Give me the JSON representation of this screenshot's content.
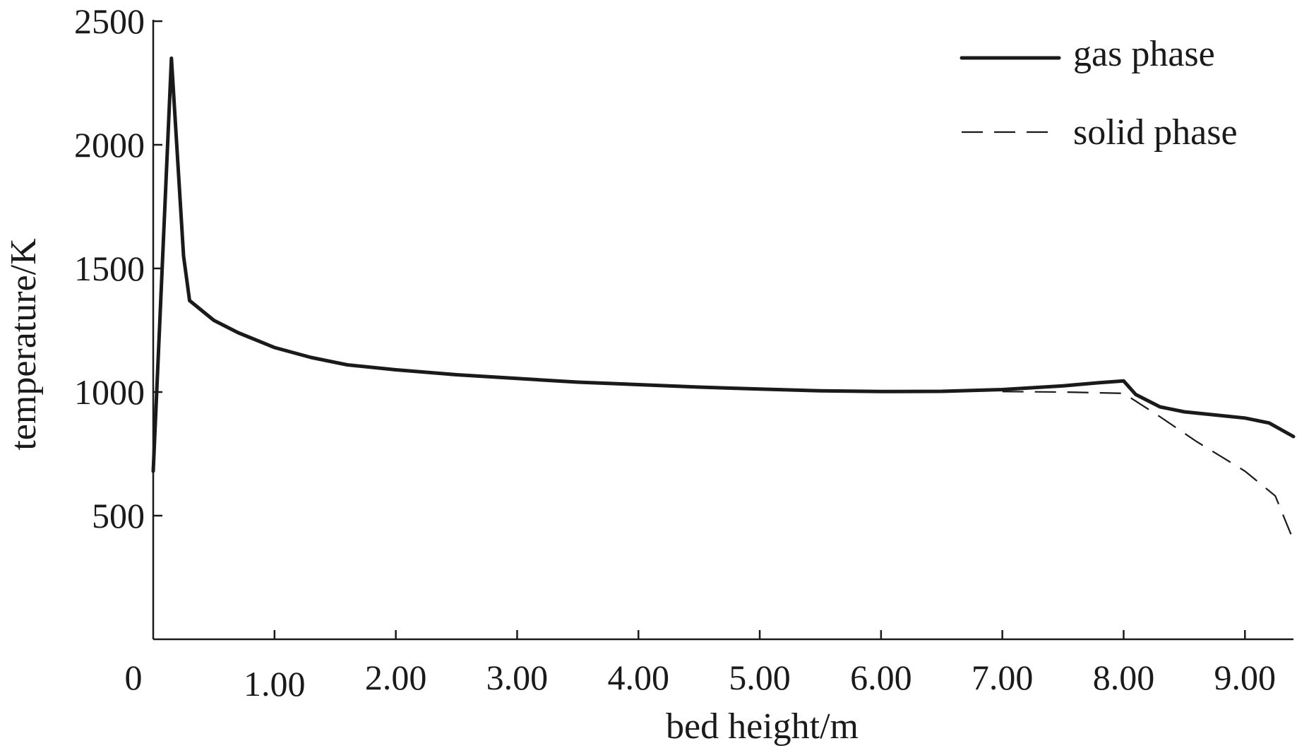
{
  "chart_data": {
    "type": "line",
    "title": "",
    "xlabel": "bed height/m",
    "ylabel": "temperature/K",
    "xlim": [
      0,
      9.4
    ],
    "ylim": [
      0,
      2500
    ],
    "x_ticks": [
      {
        "value": 0,
        "label": "0"
      },
      {
        "value": 1,
        "label": "1.00"
      },
      {
        "value": 2,
        "label": "2.00"
      },
      {
        "value": 3,
        "label": "3.00"
      },
      {
        "value": 4,
        "label": "4.00"
      },
      {
        "value": 5,
        "label": "5.00"
      },
      {
        "value": 6,
        "label": "6.00"
      },
      {
        "value": 7,
        "label": "7.00"
      },
      {
        "value": 8,
        "label": "8.00"
      },
      {
        "value": 9,
        "label": "9.00"
      }
    ],
    "y_ticks": [
      {
        "value": 500,
        "label": "500"
      },
      {
        "value": 1000,
        "label": "1000"
      },
      {
        "value": 1500,
        "label": "1500"
      },
      {
        "value": 2000,
        "label": "2000"
      },
      {
        "value": 2500,
        "label": "2500"
      }
    ],
    "grid": false,
    "legend": {
      "position": "top-right"
    },
    "series": [
      {
        "name": "gas phase",
        "style": "solid",
        "x": [
          0.0,
          0.15,
          0.25,
          0.3,
          0.5,
          0.7,
          1.0,
          1.3,
          1.6,
          2.0,
          2.5,
          3.0,
          3.5,
          4.0,
          4.5,
          5.0,
          5.5,
          6.0,
          6.5,
          7.0,
          7.5,
          7.8,
          8.0,
          8.1,
          8.3,
          8.5,
          8.7,
          9.0,
          9.2,
          9.4
        ],
        "y": [
          680,
          2350,
          1550,
          1370,
          1290,
          1240,
          1180,
          1140,
          1110,
          1090,
          1070,
          1055,
          1040,
          1030,
          1020,
          1012,
          1005,
          1002,
          1003,
          1010,
          1025,
          1038,
          1045,
          990,
          940,
          920,
          910,
          895,
          875,
          820
        ]
      },
      {
        "name": "solid phase",
        "style": "dashed",
        "x": [
          7.0,
          7.5,
          8.0,
          8.3,
          8.6,
          9.0,
          9.25,
          9.4
        ],
        "y": [
          1002,
          1000,
          995,
          900,
          800,
          680,
          580,
          400
        ]
      }
    ]
  }
}
